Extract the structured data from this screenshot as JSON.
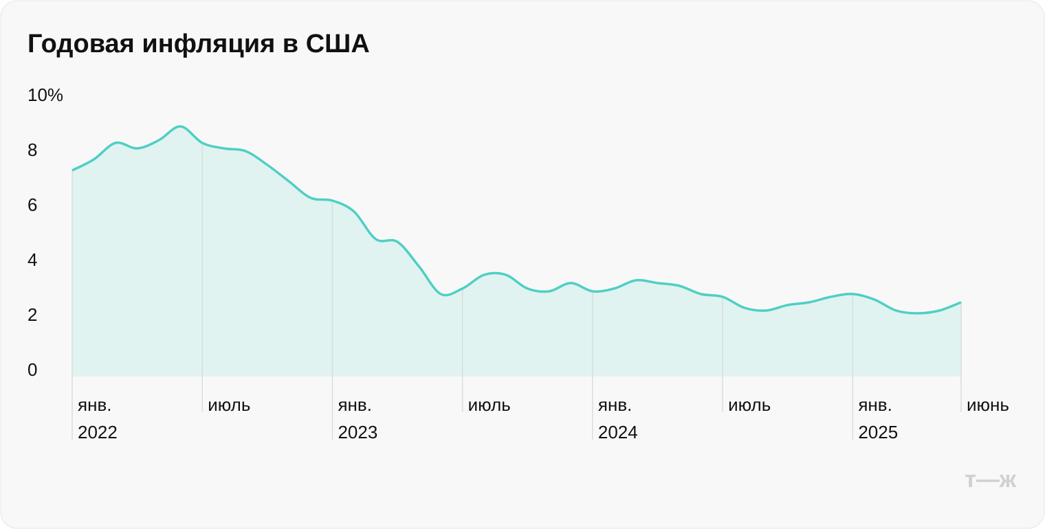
{
  "chart_data": {
    "type": "area",
    "title": "Годовая инфляция в США",
    "categories": [
      [
        "янв.",
        "2022"
      ],
      null,
      null,
      null,
      null,
      null,
      [
        "июль"
      ],
      null,
      null,
      null,
      null,
      null,
      [
        "янв.",
        "2023"
      ],
      null,
      null,
      null,
      null,
      null,
      [
        "июль"
      ],
      null,
      null,
      null,
      null,
      null,
      [
        "янв.",
        "2024"
      ],
      null,
      null,
      null,
      null,
      null,
      [
        "июль"
      ],
      null,
      null,
      null,
      null,
      null,
      [
        "янв.",
        "2025"
      ],
      null,
      null,
      null,
      null,
      [
        "июнь"
      ]
    ],
    "series": [
      {
        "name": "Годовая инфляция",
        "color": "#4fcfc4",
        "fill": "#e0f3f0",
        "values": [
          7.5,
          7.9,
          8.5,
          8.3,
          8.6,
          9.1,
          8.5,
          8.3,
          8.2,
          7.7,
          7.1,
          6.5,
          6.4,
          6.0,
          5.0,
          4.9,
          4.0,
          3.0,
          3.2,
          3.7,
          3.7,
          3.2,
          3.1,
          3.4,
          3.1,
          3.2,
          3.5,
          3.4,
          3.3,
          3.0,
          2.9,
          2.5,
          2.4,
          2.6,
          2.7,
          2.9,
          3.0,
          2.8,
          2.4,
          2.3,
          2.4,
          2.7
        ]
      }
    ],
    "ylim": [
      0,
      10
    ],
    "yticks": [
      0,
      2,
      4,
      6,
      8,
      {
        "value": 10,
        "label": "10%"
      }
    ],
    "logo": "т—ж"
  }
}
